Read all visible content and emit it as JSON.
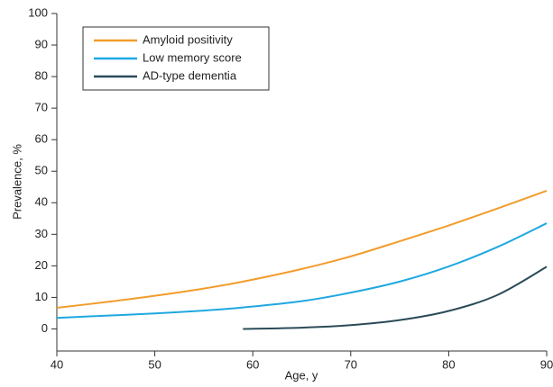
{
  "chart_data": {
    "type": "line",
    "x_label": "Age, y",
    "y_label": "Prevalence, %",
    "x": [
      40,
      45,
      50,
      55,
      59,
      65,
      70,
      75,
      80,
      85,
      90
    ],
    "series": [
      {
        "name": "Amyloid positivity",
        "color": "#f29c2b",
        "values": [
          6.7,
          8.5,
          10.5,
          12.8,
          15,
          19,
          23,
          27.8,
          32.8,
          38.2,
          43.8
        ]
      },
      {
        "name": "Low memory score",
        "color": "#1fa8e0",
        "values": [
          3.5,
          4.2,
          4.9,
          5.8,
          6.8,
          8.8,
          11.5,
          15,
          19.8,
          26,
          33.5
        ]
      },
      {
        "name": "AD-type dementia",
        "color": "#2b4b59",
        "values": [
          null,
          null,
          null,
          null,
          0,
          0.4,
          1.2,
          2.8,
          5.7,
          10.8,
          19.7
        ]
      }
    ],
    "xlim": [
      40,
      90
    ],
    "xticks": [
      40,
      50,
      60,
      70,
      80,
      90
    ],
    "ylim": [
      -7,
      100
    ],
    "yticks": [
      0,
      10,
      20,
      30,
      40,
      50,
      60,
      70,
      80,
      90,
      100
    ],
    "legend": "upper left",
    "grid": false
  }
}
